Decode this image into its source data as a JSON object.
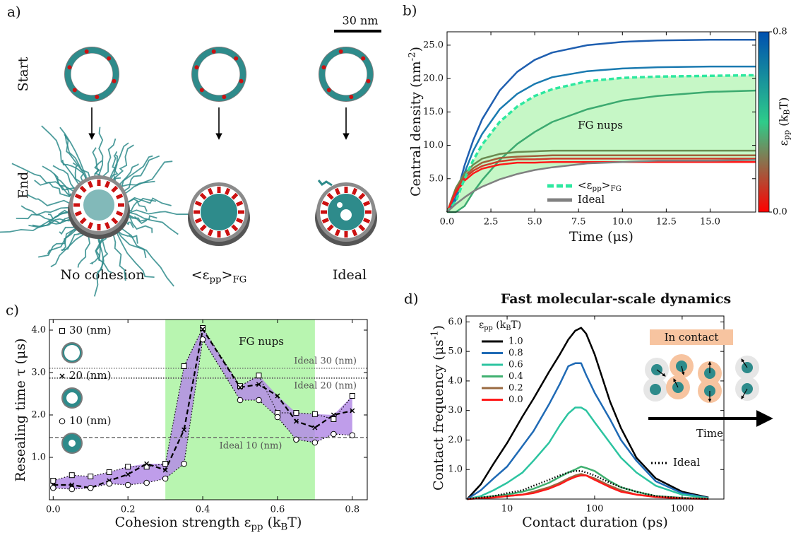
{
  "panel_labels": [
    "a)",
    "b)",
    "c)",
    "d)"
  ],
  "panel_a": {
    "scale_bar": "30 nm",
    "rows": [
      "Start",
      "End"
    ],
    "columns": [
      "No cohesion",
      [
        "<ε",
        "pp",
        ">",
        "FG"
      ],
      "Ideal"
    ]
  },
  "chart_data": [
    {
      "type": "line",
      "x_label": "Time (μs)",
      "y_label": [
        "Central density (nm",
        "-2",
        ")"
      ],
      "annotation": "FG nups",
      "x": [
        0,
        0.5,
        1,
        1.5,
        2,
        3,
        4,
        5,
        6,
        8,
        10,
        12,
        15,
        17.6
      ],
      "xlim": [
        0,
        17.6
      ],
      "ylim": [
        0,
        27
      ],
      "xticks": [
        {
          "value": 0,
          "label": "0.0"
        },
        2.5,
        {
          "value": 5,
          "label": "5.0"
        },
        7.5,
        {
          "value": 10,
          "label": "10.0"
        },
        12.5,
        {
          "value": 15,
          "label": "15.0"
        }
      ],
      "yticks": [
        {
          "value": 5,
          "label": "5.0"
        },
        {
          "value": 10,
          "label": "10.0"
        },
        {
          "value": 15,
          "label": "15.0"
        },
        {
          "value": 20,
          "label": "20.0"
        },
        {
          "value": 25,
          "label": "25.0"
        }
      ],
      "legend": "lower center",
      "series": [
        {
          "color": "#1f5fb0",
          "values": [
            0,
            2.2,
            7.0,
            10.8,
            13.9,
            18.2,
            21.0,
            22.8,
            23.9,
            25.0,
            25.5,
            25.7,
            25.8,
            25.8
          ]
        },
        {
          "color": "#1a7ab0",
          "values": [
            0,
            1.8,
            5.9,
            9.2,
            11.7,
            15.4,
            17.7,
            19.2,
            20.2,
            21.1,
            21.5,
            21.7,
            21.8,
            21.8
          ]
        },
        {
          "color": "#3caa70",
          "values": [
            0,
            0,
            0.9,
            3.0,
            4.8,
            7.8,
            10.2,
            12.0,
            13.5,
            15.4,
            16.7,
            17.4,
            18.0,
            18.2
          ]
        },
        {
          "color": "#6a8a50",
          "values": [
            0,
            3.6,
            5.8,
            7.1,
            8.0,
            8.7,
            9.0,
            9.1,
            9.2,
            9.2,
            9.2,
            9.2,
            9.2,
            9.2
          ]
        },
        {
          "color": "#a0603a",
          "values": [
            0,
            3.3,
            5.4,
            6.6,
            7.4,
            8.1,
            8.3,
            8.4,
            8.5,
            8.5,
            8.5,
            8.5,
            8.5,
            8.5
          ]
        },
        {
          "color": "#d03a2a",
          "values": [
            0,
            3.1,
            5.1,
            6.2,
            6.9,
            7.6,
            7.9,
            7.9,
            8.0,
            8.0,
            8.0,
            8.0,
            8.0,
            8.0
          ]
        },
        {
          "color": "#ff1a1a",
          "values": [
            0,
            2.9,
            4.7,
            5.8,
            6.5,
            7.1,
            7.4,
            7.4,
            7.5,
            7.5,
            7.5,
            7.5,
            7.5,
            7.5
          ]
        },
        {
          "name": [
            "<ε",
            "pp",
            ">",
            "FG"
          ],
          "color": "#2ee8a0",
          "dash": "dashed",
          "fill": "#c6f7c6",
          "values": [
            0,
            1.6,
            5.0,
            7.8,
            10.1,
            13.5,
            15.8,
            17.4,
            18.4,
            19.6,
            20.1,
            20.3,
            20.4,
            20.5
          ]
        },
        {
          "name": "Ideal",
          "color": "#808080",
          "values": [
            0,
            1.2,
            2.2,
            3.1,
            3.8,
            4.9,
            5.7,
            6.3,
            6.7,
            7.3,
            7.5,
            7.7,
            7.7,
            7.8
          ]
        }
      ],
      "colorbar": {
        "label": [
          "ε",
          "pp",
          " (k",
          "B",
          "T)"
        ],
        "lim": [
          0,
          0.8
        ],
        "colors": [
          "#ff0000",
          "#2ecc8a",
          "#0050b0"
        ],
        "ticks": [
          {
            "value": 0,
            "label": "0.0"
          },
          0.8
        ]
      }
    },
    {
      "type": "line",
      "x_label": [
        "Cohesion strength ε",
        "pp",
        " (k",
        "B",
        "T)"
      ],
      "y_label": "Resealing time τ (μs)",
      "x": [
        0,
        0.05,
        0.1,
        0.15,
        0.2,
        0.25,
        0.3,
        0.35,
        0.4,
        0.5,
        0.55,
        0.6,
        0.65,
        0.7,
        0.75,
        0.8
      ],
      "xlim": [
        -0.01,
        0.84
      ],
      "ylim": [
        0,
        4.25
      ],
      "xticks": [
        {
          "value": 0,
          "label": "0.0"
        },
        0.2,
        0.4,
        0.6,
        0.8
      ],
      "yticks": [
        {
          "value": 1,
          "label": "1.0"
        },
        {
          "value": 2,
          "label": "2.0"
        },
        {
          "value": 3,
          "label": "3.0"
        },
        {
          "value": 4,
          "label": "4.0"
        }
      ],
      "span": [
        0.3,
        0.7
      ],
      "span_label": "FG nups",
      "span_color": "#b8f5b0",
      "fill_color": "#b48ce6",
      "hlines": [
        {
          "value": 3.1,
          "label": "Ideal 30 (nm)",
          "style": "dotted"
        },
        {
          "value": 2.87,
          "label": "Ideal 20 (nm)",
          "style": "dotted"
        },
        {
          "value": 1.47,
          "label": "Ideal 10 (nm)",
          "style": "dashed"
        }
      ],
      "series": [
        {
          "name": "30 (nm)",
          "marker": "square",
          "dash": "dotted",
          "color": "#000000",
          "values": [
            0.45,
            0.58,
            0.55,
            0.65,
            0.78,
            0.78,
            0.85,
            3.15,
            4.05,
            2.68,
            2.93,
            2.05,
            2.05,
            2.02,
            1.9,
            2.45
          ]
        },
        {
          "name": "20 (nm)",
          "marker": "x",
          "dash": "dashed",
          "color": "#000000",
          "values": [
            0.35,
            0.35,
            0.28,
            0.45,
            0.6,
            0.85,
            0.7,
            1.65,
            4.02,
            2.65,
            2.72,
            2.45,
            1.85,
            1.7,
            2.0,
            2.1
          ]
        },
        {
          "name": "10 (nm)",
          "marker": "circle",
          "dash": "dotted",
          "color": "#000000",
          "values": [
            0.28,
            0.25,
            0.28,
            0.38,
            0.35,
            0.4,
            0.5,
            0.85,
            3.78,
            2.35,
            2.35,
            1.95,
            1.42,
            1.35,
            1.55,
            1.52
          ]
        }
      ]
    },
    {
      "type": "line",
      "title": "Fast molecular-scale dynamics",
      "x_label": "Contact duration (ps)",
      "y_label": [
        "Contact frequency (μs",
        "-1",
        ")"
      ],
      "xscale": "log",
      "x": [
        3.5,
        5,
        7,
        10,
        15,
        20,
        30,
        40,
        50,
        60,
        70,
        80,
        100,
        150,
        200,
        300,
        500,
        1000,
        2000
      ],
      "xlim": [
        3.4,
        3000
      ],
      "ylim": [
        0,
        6.2
      ],
      "xticks": [
        10,
        100,
        1000
      ],
      "yticks": [
        {
          "value": 1,
          "label": "1.0"
        },
        {
          "value": 2,
          "label": "2.0"
        },
        {
          "value": 3,
          "label": "3.0"
        },
        {
          "value": 4,
          "label": "4.0"
        },
        {
          "value": 5,
          "label": "5.0"
        },
        {
          "value": 6,
          "label": "6.0"
        }
      ],
      "legend_title": [
        "ε",
        "pp",
        " (k",
        "B",
        "T)"
      ],
      "series": [
        {
          "name": "1.0",
          "color": "#000000",
          "values": [
            0,
            0.5,
            1.2,
            1.9,
            2.8,
            3.4,
            4.3,
            4.9,
            5.4,
            5.7,
            5.8,
            5.6,
            4.9,
            3.3,
            2.4,
            1.4,
            0.7,
            0.25,
            0.05
          ]
        },
        {
          "name": "0.8",
          "color": "#1f6ab5",
          "values": [
            0,
            0.3,
            0.7,
            1.1,
            1.8,
            2.3,
            3.2,
            3.9,
            4.5,
            4.6,
            4.6,
            4.2,
            3.6,
            2.7,
            2.0,
            1.3,
            0.6,
            0.2,
            0.04
          ]
        },
        {
          "name": "0.6",
          "color": "#2cc4a0",
          "values": [
            0,
            0.1,
            0.3,
            0.55,
            0.9,
            1.3,
            1.9,
            2.5,
            2.9,
            3.1,
            3.1,
            3.0,
            2.6,
            1.9,
            1.4,
            0.9,
            0.45,
            0.15,
            0.03
          ]
        },
        {
          "name": "0.4",
          "color": "#40b070",
          "values": [
            0,
            0.05,
            0.1,
            0.15,
            0.25,
            0.35,
            0.55,
            0.75,
            0.9,
            1.0,
            1.1,
            1.05,
            0.95,
            0.6,
            0.4,
            0.25,
            0.1,
            0.04,
            0.01
          ]
        },
        {
          "name": "0.2",
          "color": "#9a6a40",
          "values": [
            0,
            0.03,
            0.06,
            0.1,
            0.15,
            0.25,
            0.4,
            0.55,
            0.7,
            0.8,
            0.85,
            0.8,
            0.7,
            0.45,
            0.3,
            0.15,
            0.08,
            0.03,
            0.01
          ]
        },
        {
          "name": "0.0",
          "color": "#ff1a1a",
          "values": [
            0,
            0.03,
            0.05,
            0.1,
            0.15,
            0.2,
            0.35,
            0.5,
            0.65,
            0.75,
            0.8,
            0.8,
            0.65,
            0.4,
            0.25,
            0.15,
            0.07,
            0.02,
            0.005
          ]
        },
        {
          "name": "Ideal",
          "color": "#000000",
          "dash": "dotted",
          "values": [
            0,
            0.05,
            0.1,
            0.2,
            0.3,
            0.45,
            0.65,
            0.8,
            0.9,
            0.95,
            0.95,
            0.9,
            0.8,
            0.55,
            0.4,
            0.25,
            0.1,
            0.03,
            0.01
          ]
        }
      ],
      "inset": {
        "label": "In contact",
        "arrow_label": "Time"
      }
    }
  ]
}
